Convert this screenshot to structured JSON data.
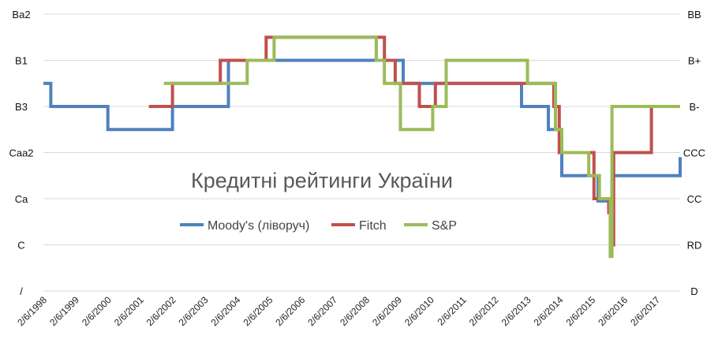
{
  "chart_data": {
    "type": "line",
    "title": "Кредитні рейтинги України",
    "grid": "horizontal",
    "legend_position": "center-middle",
    "left_axis_labels": [
      "/",
      "C",
      "Ca",
      "Caa2",
      "B3",
      "B1",
      "Ba2"
    ],
    "right_axis_labels": [
      "D",
      "RD",
      "CC",
      "CCC",
      "B-",
      "B+",
      "BB"
    ],
    "x_tick_labels": [
      "2/6/1998",
      "2/6/1999",
      "2/6/2000",
      "2/6/2001",
      "2/6/2002",
      "2/6/2003",
      "2/6/2004",
      "2/6/2005",
      "2/6/2006",
      "2/6/2007",
      "2/6/2008",
      "2/6/2009",
      "2/6/2010",
      "2/6/2011",
      "2/6/2012",
      "2/6/2013",
      "2/6/2014",
      "2/6/2015",
      "2/6/2016",
      "2/6/2017"
    ],
    "x_range": [
      "1998-02-06",
      "2017-10-31"
    ],
    "y_range": [
      0,
      12
    ],
    "series": [
      {
        "name": "Moody's (ліворуч)",
        "color": "#4f81bd",
        "points": [
          [
            "1998-02-06",
            9
          ],
          [
            "1998-05-01",
            8
          ],
          [
            "2000-02-06",
            7
          ],
          [
            "2002-02-06",
            8
          ],
          [
            "2003-11-01",
            10
          ],
          [
            "2008-02-06",
            10
          ],
          [
            "2009-04-01",
            9
          ],
          [
            "2012-12-01",
            8
          ],
          [
            "2013-10-01",
            7
          ],
          [
            "2014-03-01",
            5
          ],
          [
            "2015-04-15",
            3.9
          ],
          [
            "2015-09-20",
            5
          ],
          [
            "2017-10-31",
            5.8
          ]
        ]
      },
      {
        "name": "Fitch",
        "color": "#c0504d",
        "points": [
          [
            "2001-05-15",
            8
          ],
          [
            "2002-02-06",
            9
          ],
          [
            "2003-08-01",
            10
          ],
          [
            "2005-01-01",
            11
          ],
          [
            "2008-09-01",
            10
          ],
          [
            "2009-01-01",
            9
          ],
          [
            "2009-10-01",
            8
          ],
          [
            "2010-04-01",
            9
          ],
          [
            "2013-12-01",
            8
          ],
          [
            "2014-02-01",
            6
          ],
          [
            "2015-03-01",
            4
          ],
          [
            "2015-08-15",
            3.4
          ],
          [
            "2015-09-20",
            2
          ],
          [
            "2015-10-10",
            6
          ],
          [
            "2016-12-10",
            8
          ],
          [
            "2016-12-20",
            8
          ]
        ]
      },
      {
        "name": "S&P",
        "color": "#9bbb59",
        "points": [
          [
            "2001-11-01",
            9
          ],
          [
            "2004-06-01",
            10
          ],
          [
            "2005-04-01",
            11
          ],
          [
            "2008-06-01",
            10
          ],
          [
            "2008-09-01",
            9
          ],
          [
            "2009-03-01",
            7
          ],
          [
            "2010-03-01",
            8
          ],
          [
            "2010-08-01",
            10
          ],
          [
            "2013-02-06",
            9
          ],
          [
            "2013-12-20",
            7
          ],
          [
            "2014-03-01",
            6
          ],
          [
            "2015-01-01",
            5
          ],
          [
            "2015-05-01",
            4
          ],
          [
            "2015-09-01",
            1.5
          ],
          [
            "2015-09-20",
            8
          ],
          [
            "2017-10-31",
            8
          ]
        ]
      }
    ]
  }
}
